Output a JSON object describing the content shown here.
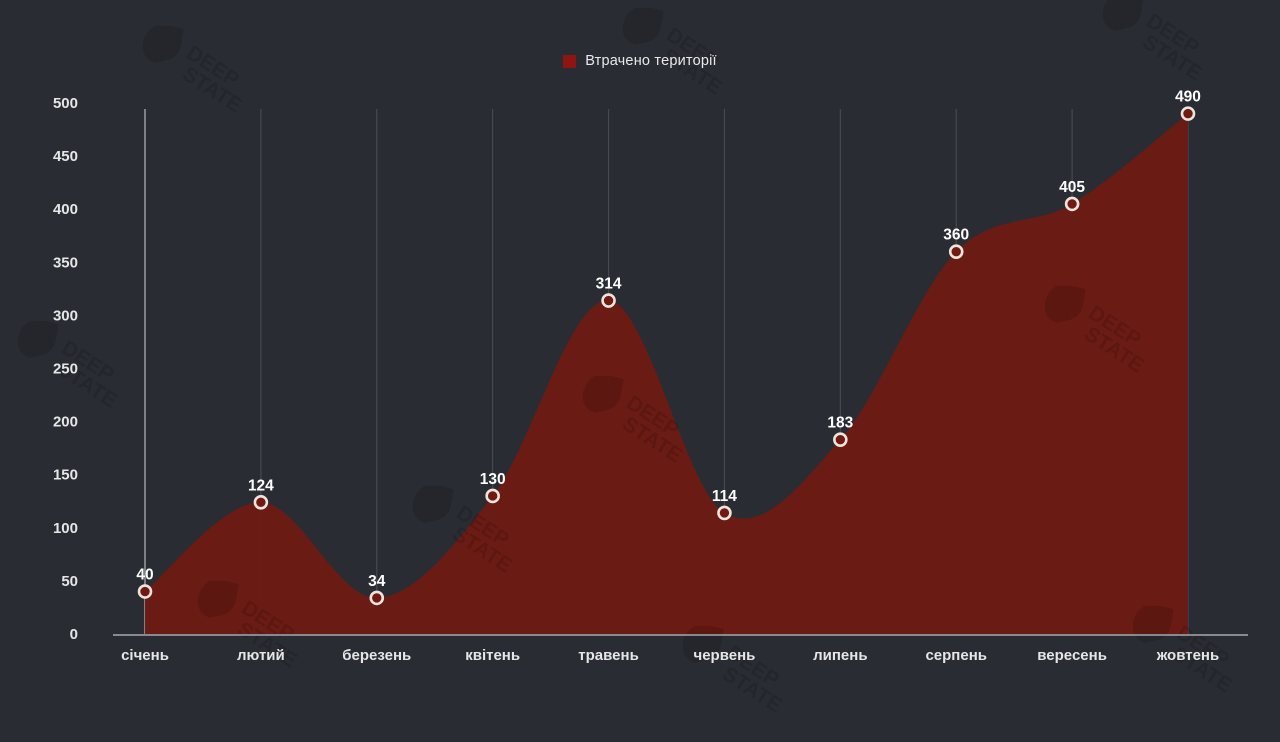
{
  "legend": {
    "label": "Втрачено території"
  },
  "watermark": {
    "line1": "DEEP",
    "line2": "STATE"
  },
  "chart_data": {
    "type": "area",
    "title": "",
    "xlabel": "",
    "ylabel": "",
    "categories": [
      "січень",
      "лютий",
      "березень",
      "квітень",
      "травень",
      "червень",
      "липень",
      "серпень",
      "вересень",
      "жовтень"
    ],
    "series": [
      {
        "name": "Втрачено території",
        "values": [
          40,
          124,
          34,
          130,
          314,
          114,
          183,
          360,
          405,
          490
        ]
      }
    ],
    "ylim": [
      0,
      500
    ],
    "ytick_step": 50,
    "grid": "vertical-only",
    "legend_position": "top-center",
    "value_labels": true,
    "colors": {
      "background": "#292c33",
      "area_fill": "#6e1a13",
      "marker_fill": "#701a12",
      "marker_stroke": "#eee4de",
      "legend_swatch": "#8f1510",
      "value_label_text": "#ffffff",
      "axis_tick_text": "#e6e6e7",
      "gridline": "rgba(255,255,255,0.14)",
      "first_gridline": "rgba(255,255,255,0.5)",
      "axis_line": "#a7a9ad",
      "watermark": "rgba(0,0,0,0.12)"
    }
  }
}
